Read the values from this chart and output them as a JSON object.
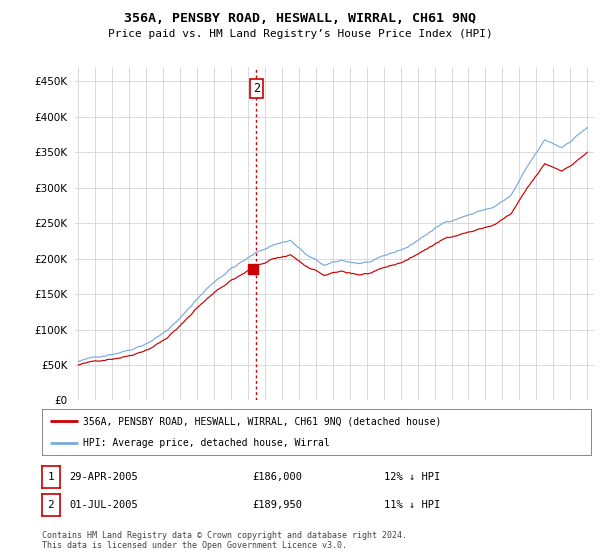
{
  "title": "356A, PENSBY ROAD, HESWALL, WIRRAL, CH61 9NQ",
  "subtitle": "Price paid vs. HM Land Registry’s House Price Index (HPI)",
  "legend_label_red": "356A, PENSBY ROAD, HESWALL, WIRRAL, CH61 9NQ (detached house)",
  "legend_label_blue": "HPI: Average price, detached house, Wirral",
  "footnote": "Contains HM Land Registry data © Crown copyright and database right 2024.\nThis data is licensed under the Open Government Licence v3.0.",
  "transactions": [
    {
      "num": 1,
      "date": "29-APR-2005",
      "price": "£186,000",
      "hpi_diff": "12% ↓ HPI"
    },
    {
      "num": 2,
      "date": "01-JUL-2005",
      "price": "£189,950",
      "hpi_diff": "11% ↓ HPI"
    }
  ],
  "ylim": [
    0,
    470000
  ],
  "yticks": [
    0,
    50000,
    100000,
    150000,
    200000,
    250000,
    300000,
    350000,
    400000,
    450000
  ],
  "xstart_year": 1995,
  "xend_year": 2025,
  "red_color": "#cc0000",
  "blue_color": "#7aabdc",
  "background_color": "#ffffff",
  "grid_color": "#cccccc",
  "trans1_year": 2005.29,
  "trans2_year": 2005.5,
  "trans1_price": 186000,
  "trans2_price": 189950
}
